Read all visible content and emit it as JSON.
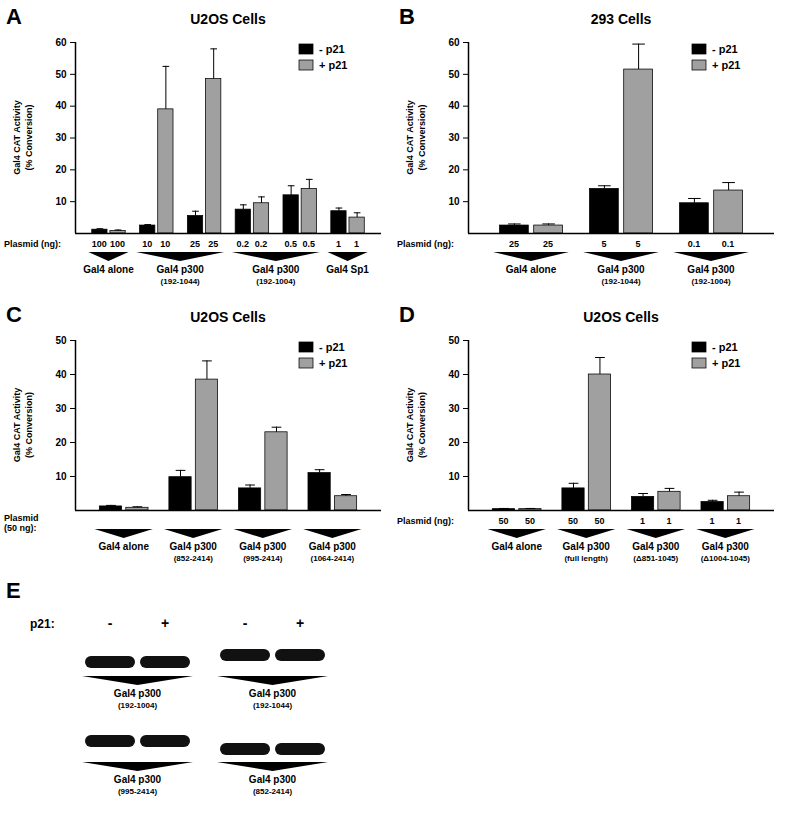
{
  "chart_data": [
    {
      "type": "bar",
      "panel": "A",
      "title": "U2OS Cells",
      "y_label": "Gal4 CAT Activity\n(% Conversion)",
      "plasmid_label": "Plasmid (ng):",
      "categories": [
        "100",
        "10",
        "25",
        "0.2",
        "0.5",
        "1"
      ],
      "groups": [
        {
          "label": "Gal4 alone",
          "count": 1
        },
        {
          "label": "Gal4 p300",
          "sublabel": "(192-1044)",
          "count": 2
        },
        {
          "label": "Gal4 p300",
          "sublabel": "(192-1004)",
          "count": 2
        },
        {
          "label": "Gal4 Sp1",
          "count": 1
        }
      ],
      "series": [
        {
          "name": "- p21",
          "color": "#000000",
          "values": [
            1.2,
            2.5,
            5.5,
            7.5,
            12,
            7
          ],
          "errors": [
            0.3,
            0.3,
            1.5,
            1.5,
            3,
            1
          ]
        },
        {
          "name": "+ p21",
          "color": "#a0a0a0",
          "values": [
            0.8,
            39,
            48.5,
            9.5,
            14,
            5
          ],
          "errors": [
            0.3,
            13.5,
            9.5,
            2,
            3,
            1.5
          ]
        }
      ],
      "ylim": [
        0,
        60
      ],
      "yticks": [
        10,
        20,
        30,
        40,
        50,
        60
      ],
      "legend": "top-right"
    },
    {
      "type": "bar",
      "panel": "B",
      "title": "293 Cells",
      "y_label": "Gal4 CAT Activity\n(% Conversion)",
      "plasmid_label": "Plasmid (ng):",
      "categories": [
        "25",
        "5",
        "0.1"
      ],
      "groups": [
        {
          "label": "Gal4 alone",
          "count": 1
        },
        {
          "label": "Gal4 p300",
          "sublabel": "(192-1044)",
          "count": 1
        },
        {
          "label": "Gal4 p300",
          "sublabel": "(192-1004)",
          "count": 1
        }
      ],
      "series": [
        {
          "name": "- p21",
          "color": "#000000",
          "values": [
            2.5,
            14,
            9.5
          ],
          "errors": [
            0.5,
            1,
            1.5
          ]
        },
        {
          "name": "+ p21",
          "color": "#a0a0a0",
          "values": [
            2.5,
            51.5,
            13.5
          ],
          "errors": [
            0.5,
            8,
            2.5
          ]
        }
      ],
      "ylim": [
        0,
        60
      ],
      "yticks": [
        10,
        20,
        30,
        40,
        50,
        60
      ],
      "legend": "top-right"
    },
    {
      "type": "bar",
      "panel": "C",
      "title": "U2OS Cells",
      "y_label": "Gal4 CAT Activity\n(% Conversion)",
      "plasmid_label": "Plasmid\n(50 ng):",
      "categories": [
        null,
        null,
        null,
        null
      ],
      "groups": [
        {
          "label": "Gal4 alone",
          "count": 1
        },
        {
          "label": "Gal4 p300",
          "sublabel": "(852-2414)",
          "count": 1
        },
        {
          "label": "Gal4 p300",
          "sublabel": "(995-2414)",
          "count": 1
        },
        {
          "label": "Gal4 p300",
          "sublabel": "(1064-2414)",
          "count": 1
        }
      ],
      "series": [
        {
          "name": "- p21",
          "color": "#000000",
          "values": [
            1.2,
            9.8,
            6.5,
            11
          ],
          "errors": [
            0.3,
            2,
            1,
            1
          ]
        },
        {
          "name": "+ p21",
          "color": "#a0a0a0",
          "values": [
            0.8,
            38.5,
            23,
            4.2
          ],
          "errors": [
            0.3,
            5.5,
            1.5,
            0.5
          ]
        }
      ],
      "ylim": [
        0,
        50
      ],
      "yticks": [
        10,
        20,
        30,
        40,
        50
      ],
      "legend": "top-right"
    },
    {
      "type": "bar",
      "panel": "D",
      "title": "U2OS Cells",
      "y_label": "Gal4 CAT Activity\n(% Conversion)",
      "plasmid_label": "Plasmid (ng):",
      "categories": [
        "50",
        "50",
        "1",
        "1"
      ],
      "groups": [
        {
          "label": "Gal4 alone",
          "count": 1
        },
        {
          "label": "Gal4 p300",
          "sublabel": "(full length)",
          "count": 1
        },
        {
          "label": "Gal4 p300",
          "sublabel": "(Δ851-1045)",
          "count": 1
        },
        {
          "label": "Gal4 p300",
          "sublabel": "(Δ1004-1045)",
          "count": 1
        }
      ],
      "series": [
        {
          "name": "- p21",
          "color": "#000000",
          "values": [
            0.4,
            6.5,
            4,
            2.5
          ],
          "errors": [
            0.2,
            1.5,
            1,
            0.5
          ]
        },
        {
          "name": "+ p21",
          "color": "#a0a0a0",
          "values": [
            0.4,
            40,
            5.5,
            4.2
          ],
          "errors": [
            0.2,
            5,
            1,
            1.2
          ]
        }
      ],
      "ylim": [
        0,
        50
      ],
      "yticks": [
        10,
        20,
        30,
        40,
        50
      ],
      "legend": "top-right"
    }
  ],
  "blot": {
    "panel": "E",
    "row_label": "p21:",
    "lanes": [
      "-",
      "+",
      "-",
      "+"
    ],
    "rows": [
      [
        {
          "label": "Gal4 p300",
          "sublabel": "(192-1004)"
        },
        {
          "label": "Gal4 p300",
          "sublabel": "(192-1044)"
        }
      ],
      [
        {
          "label": "Gal4 p300",
          "sublabel": "(995-2414)"
        },
        {
          "label": "Gal4 p300",
          "sublabel": "(852-2414)"
        }
      ]
    ]
  }
}
